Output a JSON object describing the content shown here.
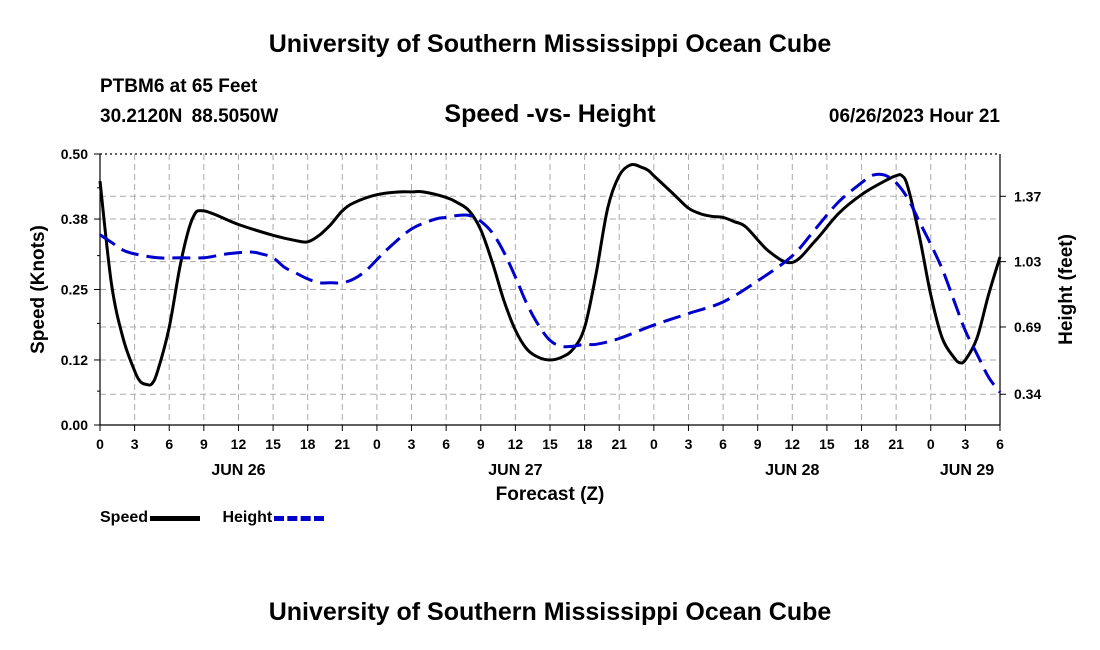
{
  "header": {
    "title": "University of Southern Mississippi Ocean Cube",
    "station": "PTBM6 at 65 Feet",
    "coords": "30.2120N  88.5050W",
    "subtitle": "Speed -vs- Height",
    "datetime": "06/26/2023 Hour 21"
  },
  "footer": {
    "title": "University of Southern Mississippi Ocean Cube"
  },
  "legend": {
    "speed_label": "Speed",
    "height_label": "Height"
  },
  "colors": {
    "speed": "#000000",
    "height": "#0000cc",
    "grid": "#aaaaaa"
  },
  "chart_data": {
    "type": "line",
    "title": "Speed -vs- Height",
    "xlabel": "Forecast (Z)",
    "ylabel": "Speed (Knots)",
    "y2label": "Height (feet)",
    "xlim": [
      0,
      78
    ],
    "ylim": [
      0,
      0.5
    ],
    "y2lim": [
      0.18,
      1.59
    ],
    "grid": true,
    "x_ticks": [
      0,
      3,
      6,
      9,
      12,
      15,
      18,
      21,
      24,
      27,
      30,
      33,
      36,
      39,
      42,
      45,
      48,
      51,
      54,
      57,
      60,
      63,
      66,
      69,
      72,
      75,
      78
    ],
    "x_tick_labels": [
      "0",
      "3",
      "6",
      "9",
      "12",
      "15",
      "18",
      "21",
      "0",
      "3",
      "6",
      "9",
      "12",
      "15",
      "18",
      "21",
      "0",
      "3",
      "6",
      "9",
      "12",
      "15",
      "18",
      "21",
      "0",
      "3",
      "6"
    ],
    "date_labels": [
      {
        "x": 12,
        "label": "JUN 26"
      },
      {
        "x": 36,
        "label": "JUN 27"
      },
      {
        "x": 60,
        "label": "JUN 28"
      },
      {
        "x": 78,
        "label": "JUN 29"
      }
    ],
    "y_ticks": [
      0.0,
      0.12,
      0.25,
      0.38,
      0.5
    ],
    "y_tick_labels": [
      "0.00",
      "0.12",
      "0.25",
      "0.38",
      "0.50"
    ],
    "y2_ticks": [
      0.34,
      0.69,
      1.03,
      1.37
    ],
    "y2_tick_labels": [
      "0.34",
      "0.69",
      "1.03",
      "1.37"
    ],
    "series": [
      {
        "name": "Speed",
        "axis": "left",
        "x": [
          0,
          1,
          2,
          3,
          3.5,
          4,
          4.5,
          5,
          6,
          7,
          8,
          9,
          12,
          15,
          17,
          18,
          19,
          20,
          21,
          22,
          24,
          26,
          27,
          28,
          30,
          31,
          32,
          33,
          34,
          35,
          36,
          37,
          38,
          39,
          40,
          41,
          42,
          43,
          44,
          45,
          46,
          47,
          47.5,
          48,
          49,
          50,
          51,
          52,
          53,
          54,
          55,
          56,
          58,
          60,
          62,
          64,
          66,
          68,
          69,
          69.5,
          70,
          71,
          72,
          73,
          74,
          74.5,
          75,
          76,
          77,
          78
        ],
        "values": [
          0.45,
          0.26,
          0.16,
          0.1,
          0.08,
          0.075,
          0.076,
          0.1,
          0.18,
          0.3,
          0.38,
          0.395,
          0.37,
          0.35,
          0.34,
          0.338,
          0.35,
          0.37,
          0.395,
          0.41,
          0.425,
          0.43,
          0.43,
          0.43,
          0.42,
          0.41,
          0.395,
          0.36,
          0.3,
          0.23,
          0.175,
          0.14,
          0.125,
          0.12,
          0.125,
          0.14,
          0.18,
          0.28,
          0.4,
          0.46,
          0.48,
          0.475,
          0.47,
          0.46,
          0.44,
          0.42,
          0.4,
          0.39,
          0.385,
          0.383,
          0.375,
          0.365,
          0.32,
          0.3,
          0.34,
          0.39,
          0.425,
          0.45,
          0.46,
          0.46,
          0.44,
          0.35,
          0.24,
          0.16,
          0.125,
          0.115,
          0.12,
          0.16,
          0.24,
          0.31
        ],
        "values_note": "left-axis speed in knots"
      },
      {
        "name": "Height",
        "axis": "right",
        "x": [
          0,
          1,
          2,
          3,
          5,
          7,
          9,
          11,
          13,
          14,
          15,
          16,
          17,
          18,
          19,
          20,
          21,
          22,
          23,
          24,
          25,
          27,
          29,
          30,
          31,
          32,
          33,
          34,
          35,
          36,
          37,
          38,
          39,
          40,
          41,
          42,
          43,
          45,
          48,
          51,
          54,
          57,
          60,
          62,
          64,
          66,
          67,
          68,
          69,
          70,
          71,
          72,
          73,
          74,
          75,
          76,
          77,
          78
        ],
        "values": [
          1.17,
          1.13,
          1.09,
          1.07,
          1.05,
          1.05,
          1.05,
          1.07,
          1.08,
          1.07,
          1.05,
          1.0,
          0.97,
          0.94,
          0.92,
          0.92,
          0.92,
          0.94,
          0.98,
          1.04,
          1.1,
          1.2,
          1.25,
          1.26,
          1.27,
          1.27,
          1.24,
          1.18,
          1.08,
          0.95,
          0.81,
          0.7,
          0.62,
          0.59,
          0.59,
          0.6,
          0.6,
          0.63,
          0.7,
          0.76,
          0.82,
          0.93,
          1.06,
          1.2,
          1.34,
          1.44,
          1.48,
          1.48,
          1.44,
          1.36,
          1.24,
          1.12,
          0.99,
          0.83,
          0.67,
          0.55,
          0.43,
          0.35
        ],
        "values_note": "right-axis height in feet"
      }
    ]
  }
}
